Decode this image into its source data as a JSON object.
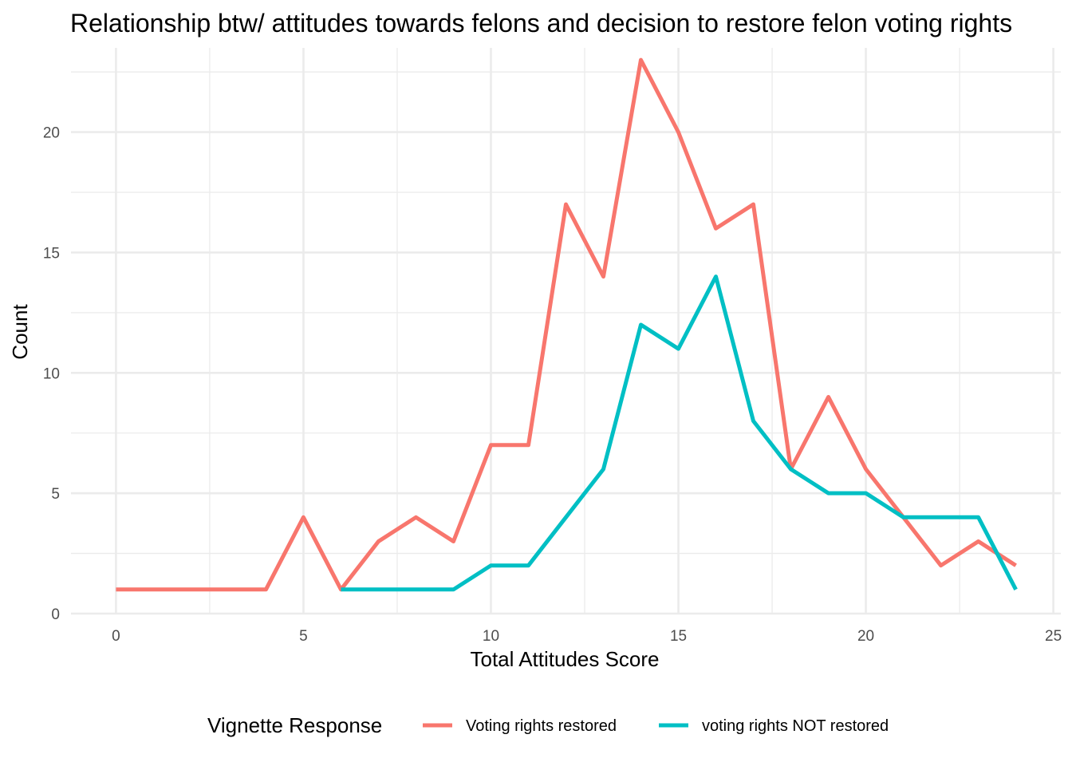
{
  "chart_data": {
    "type": "line",
    "title": "Relationship btw/ attitudes towards felons and decision to restore felon voting rights",
    "xlabel": "Total Attitudes Score",
    "ylabel": "Count",
    "xlim": [
      -1.2,
      25.2
    ],
    "ylim": [
      0,
      23.5
    ],
    "x_ticks": [
      0,
      5,
      10,
      15,
      20,
      25
    ],
    "y_ticks": [
      0,
      5,
      10,
      15,
      20
    ],
    "grid": true,
    "legend": {
      "title": "Vignette Response",
      "position": "bottom"
    },
    "series": [
      {
        "name": "Voting rights restored",
        "color": "#F8766D",
        "points": [
          [
            0,
            1
          ],
          [
            1,
            1
          ],
          [
            2,
            1
          ],
          [
            3,
            1
          ],
          [
            4,
            1
          ],
          [
            5,
            4
          ],
          [
            6,
            1
          ],
          [
            7,
            3
          ],
          [
            8,
            4
          ],
          [
            9,
            3
          ],
          [
            10,
            7
          ],
          [
            11,
            7
          ],
          [
            12,
            17
          ],
          [
            13,
            14
          ],
          [
            14,
            23
          ],
          [
            15,
            20
          ],
          [
            16,
            16
          ],
          [
            17,
            17
          ],
          [
            18,
            6
          ],
          [
            19,
            9
          ],
          [
            20,
            6
          ],
          [
            21,
            4
          ],
          [
            22,
            2
          ],
          [
            23,
            3
          ],
          [
            24,
            2
          ]
        ]
      },
      {
        "name": "voting rights NOT restored",
        "color": "#00BFC4",
        "points": [
          [
            6,
            1
          ],
          [
            7,
            1
          ],
          [
            8,
            1
          ],
          [
            9,
            1
          ],
          [
            10,
            2
          ],
          [
            11,
            2
          ],
          [
            12,
            4
          ],
          [
            13,
            6
          ],
          [
            14,
            12
          ],
          [
            15,
            11
          ],
          [
            16,
            14
          ],
          [
            17,
            8
          ],
          [
            18,
            6
          ],
          [
            19,
            5
          ],
          [
            20,
            5
          ],
          [
            21,
            4
          ],
          [
            22,
            4
          ],
          [
            23,
            4
          ],
          [
            24,
            1
          ]
        ]
      }
    ]
  }
}
